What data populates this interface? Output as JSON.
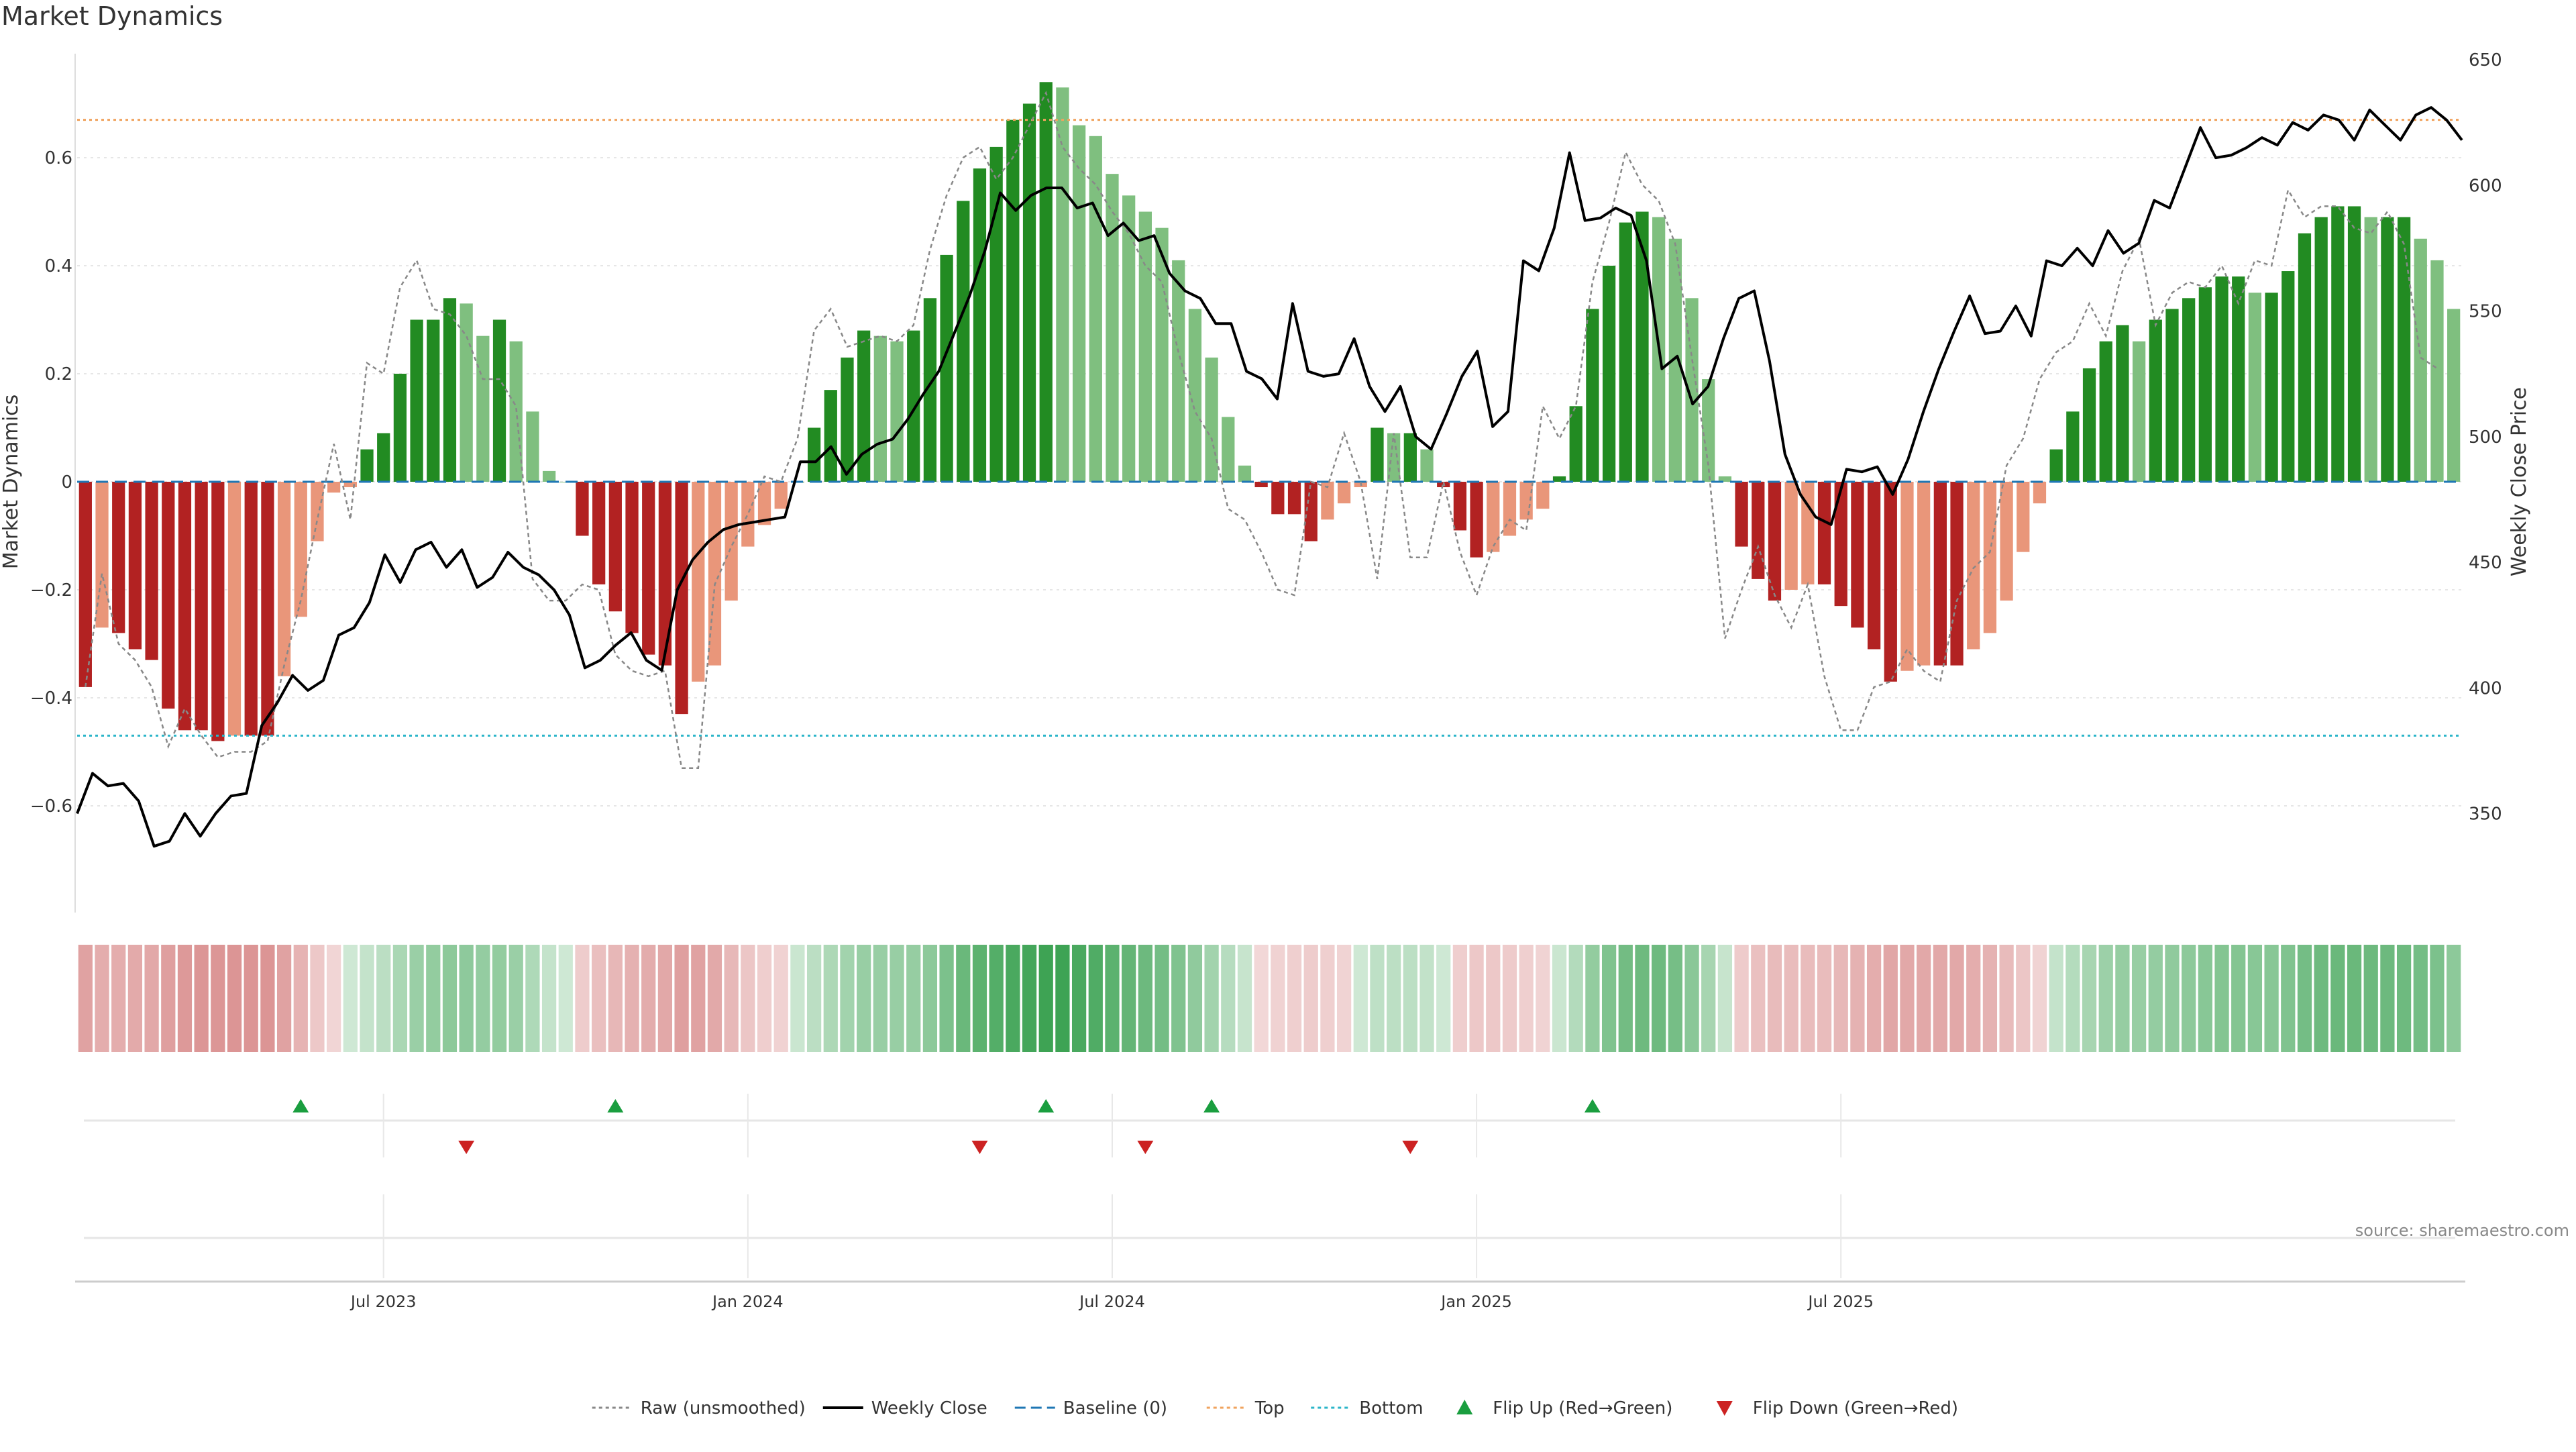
{
  "chart_data": {
    "type": "bar",
    "title": "Market Dynamics",
    "source": "source: sharemaestro.com",
    "ylabel_left": "Market Dynamics",
    "ylabel_right": "Weekly Close Price",
    "ylim_left": [
      -0.8,
      0.8
    ],
    "ylim_right": [
      310,
      660
    ],
    "left_ticks": [
      "0.6",
      "0.4",
      "0.2",
      "0",
      "−0.2",
      "−0.4",
      "−0.6"
    ],
    "left_tick_values": [
      0.6,
      0.4,
      0.2,
      0,
      -0.2,
      -0.4,
      -0.6
    ],
    "right_ticks": [
      "650",
      "600",
      "550",
      "500",
      "450",
      "400",
      "350"
    ],
    "right_tick_values": [
      650,
      600,
      550,
      500,
      450,
      400,
      350
    ],
    "x_ticks": [
      {
        "label": "Jul 2023",
        "week": 18
      },
      {
        "label": "Jan 2024",
        "week": 40
      },
      {
        "label": "Jul 2024",
        "week": 62
      },
      {
        "label": "Jan 2025",
        "week": 84
      },
      {
        "label": "Jul 2025",
        "week": 106
      }
    ],
    "reference_lines": {
      "top": 0.67,
      "bottom": -0.47,
      "baseline": 0
    },
    "bars": [
      -0.38,
      -0.27,
      -0.28,
      -0.31,
      -0.33,
      -0.42,
      -0.46,
      -0.46,
      -0.48,
      -0.47,
      -0.47,
      -0.47,
      -0.36,
      -0.25,
      -0.11,
      -0.02,
      -0.01,
      0.06,
      0.09,
      0.2,
      0.3,
      0.3,
      0.34,
      0.33,
      0.27,
      0.3,
      0.26,
      0.13,
      0.02,
      0,
      -0.1,
      -0.19,
      -0.24,
      -0.28,
      -0.32,
      -0.34,
      -0.43,
      -0.37,
      -0.34,
      -0.22,
      -0.12,
      -0.08,
      -0.05,
      0,
      0.1,
      0.17,
      0.23,
      0.28,
      0.27,
      0.26,
      0.28,
      0.34,
      0.42,
      0.52,
      0.58,
      0.62,
      0.67,
      0.7,
      0.74,
      0.73,
      0.66,
      0.64,
      0.57,
      0.53,
      0.5,
      0.47,
      0.41,
      0.32,
      0.23,
      0.12,
      0.03,
      -0.01,
      -0.06,
      -0.06,
      -0.11,
      -0.07,
      -0.04,
      -0.01,
      0.1,
      0.09,
      0.09,
      0.06,
      -0.01,
      -0.09,
      -0.14,
      -0.13,
      -0.1,
      -0.07,
      -0.05,
      0.01,
      0.14,
      0.32,
      0.4,
      0.48,
      0.5,
      0.49,
      0.45,
      0.34,
      0.19,
      0.01,
      -0.12,
      -0.18,
      -0.22,
      -0.2,
      -0.19,
      -0.19,
      -0.23,
      -0.27,
      -0.31,
      -0.37,
      -0.35,
      -0.34,
      -0.34,
      -0.34,
      -0.31,
      -0.28,
      -0.22,
      -0.13,
      -0.04,
      0.06,
      0.13,
      0.21,
      0.26,
      0.29,
      0.26,
      0.3,
      0.32,
      0.34,
      0.36,
      0.38,
      0.38,
      0.35,
      0.35,
      0.39,
      0.46,
      0.49,
      0.51,
      0.51,
      0.49,
      0.49,
      0.49,
      0.45,
      0.41,
      0.32
    ],
    "raw": [
      -0.38,
      -0.17,
      -0.3,
      -0.33,
      -0.38,
      -0.49,
      -0.42,
      -0.47,
      -0.51,
      -0.5,
      -0.5,
      -0.48,
      -0.34,
      -0.22,
      -0.07,
      0.07,
      -0.07,
      0.22,
      0.2,
      0.36,
      0.41,
      0.32,
      0.31,
      0.27,
      0.19,
      0.19,
      0.14,
      -0.18,
      -0.22,
      -0.22,
      -0.19,
      -0.2,
      -0.32,
      -0.35,
      -0.36,
      -0.35,
      -0.53,
      -0.53,
      -0.19,
      -0.12,
      -0.06,
      0.01,
      0.0,
      0.08,
      0.28,
      0.32,
      0.25,
      0.26,
      0.27,
      0.26,
      0.29,
      0.43,
      0.53,
      0.6,
      0.62,
      0.56,
      0.6,
      0.66,
      0.72,
      0.62,
      0.58,
      0.55,
      0.5,
      0.46,
      0.4,
      0.37,
      0.24,
      0.13,
      0.08,
      -0.05,
      -0.07,
      -0.13,
      -0.2,
      -0.21,
      0.0,
      -0.01,
      0.09,
      0.0,
      -0.18,
      0.09,
      -0.14,
      -0.14,
      0.0,
      -0.13,
      -0.21,
      -0.12,
      -0.07,
      -0.09,
      0.14,
      0.08,
      0.14,
      0.37,
      0.48,
      0.61,
      0.55,
      0.52,
      0.44,
      0.23,
      0.03,
      -0.29,
      -0.2,
      -0.12,
      -0.21,
      -0.27,
      -0.19,
      -0.36,
      -0.46,
      -0.46,
      -0.38,
      -0.37,
      -0.31,
      -0.35,
      -0.37,
      -0.22,
      -0.16,
      -0.13,
      0.03,
      0.08,
      0.19,
      0.24,
      0.26,
      0.33,
      0.27,
      0.39,
      0.45,
      0.29,
      0.35,
      0.37,
      0.36,
      0.4,
      0.33,
      0.41,
      0.4,
      0.54,
      0.49,
      0.51,
      0.51,
      0.47,
      0.46,
      0.5,
      0.44,
      0.23,
      0.21
    ],
    "close": [
      350,
      366,
      361,
      362,
      355,
      337,
      339,
      350,
      341,
      350,
      357,
      358,
      385,
      394,
      405,
      399,
      403,
      421,
      424,
      434,
      453,
      442,
      455,
      458,
      448,
      455,
      440,
      444,
      454,
      448,
      445,
      439,
      429,
      408,
      411,
      417,
      422,
      411,
      407,
      439,
      451,
      458,
      463,
      465,
      466,
      467,
      468,
      490,
      490,
      496,
      485,
      493,
      497,
      499,
      507,
      517,
      526,
      541,
      556,
      574,
      597,
      590,
      596,
      599,
      599,
      591,
      593,
      580,
      585,
      578,
      580,
      565,
      558,
      555,
      545,
      545,
      526,
      523,
      515,
      553,
      526,
      524,
      525,
      539,
      520,
      510,
      520,
      500,
      495,
      509,
      524,
      534,
      504,
      510,
      570,
      566,
      583,
      613,
      586,
      587,
      591,
      588,
      570,
      527,
      532,
      513,
      520,
      539,
      555,
      558,
      530,
      493,
      477,
      468,
      465,
      487,
      486,
      488,
      477,
      491,
      510,
      527,
      542,
      556,
      541,
      542,
      552,
      540,
      570,
      568,
      575,
      568,
      582,
      573,
      577,
      594,
      591,
      607,
      623,
      611,
      612,
      615,
      619,
      616,
      625,
      622,
      628,
      626,
      618,
      630,
      624,
      618,
      628,
      631,
      626,
      618
    ],
    "heat_values": [
      -0.38,
      -0.3,
      -0.3,
      -0.32,
      -0.34,
      -0.4,
      -0.44,
      -0.46,
      -0.46,
      -0.47,
      -0.47,
      -0.47,
      -0.38,
      -0.26,
      -0.12,
      -0.03,
      0,
      0.05,
      0.1,
      0.18,
      0.26,
      0.3,
      0.33,
      0.32,
      0.29,
      0.3,
      0.26,
      0.16,
      0.05,
      0,
      -0.09,
      -0.18,
      -0.24,
      -0.28,
      -0.31,
      -0.34,
      -0.4,
      -0.38,
      -0.33,
      -0.23,
      -0.13,
      -0.08,
      -0.05,
      0.02,
      0.1,
      0.17,
      0.22,
      0.27,
      0.27,
      0.27,
      0.28,
      0.33,
      0.41,
      0.5,
      0.57,
      0.61,
      0.66,
      0.69,
      0.72,
      0.72,
      0.66,
      0.63,
      0.57,
      0.53,
      0.49,
      0.45,
      0.39,
      0.31,
      0.22,
      0.12,
      0.04,
      -0.02,
      -0.05,
      -0.07,
      -0.09,
      -0.07,
      -0.04,
      0,
      0.08,
      0.09,
      0.09,
      0.06,
      0,
      -0.08,
      -0.12,
      -0.12,
      -0.1,
      -0.07,
      -0.04,
      0.02,
      0.14,
      0.3,
      0.39,
      0.46,
      0.48,
      0.48,
      0.44,
      0.34,
      0.2,
      0.04,
      -0.1,
      -0.17,
      -0.21,
      -0.2,
      -0.2,
      -0.2,
      -0.23,
      -0.27,
      -0.3,
      -0.35,
      -0.34,
      -0.34,
      -0.34,
      -0.34,
      -0.3,
      -0.27,
      -0.21,
      -0.13,
      -0.04,
      0.05,
      0.13,
      0.2,
      0.25,
      0.28,
      0.27,
      0.29,
      0.31,
      0.33,
      0.35,
      0.37,
      0.37,
      0.35,
      0.35,
      0.39,
      0.45,
      0.48,
      0.5,
      0.5,
      0.49,
      0.49,
      0.48,
      0.45,
      0.41,
      0.33
    ],
    "flip_up_weeks": [
      13,
      32,
      58,
      68,
      91
    ],
    "flip_down_weeks": [
      23,
      54,
      64,
      80
    ],
    "legend": [
      {
        "label": "Raw (unsmoothed)",
        "style": "dotted",
        "color": "#888888"
      },
      {
        "label": "Weekly Close",
        "style": "solid",
        "color": "#000000"
      },
      {
        "label": "Baseline (0)",
        "style": "dashed",
        "color": "#1f77b4"
      },
      {
        "label": "Top",
        "style": "dotted",
        "color": "#f0a35e"
      },
      {
        "label": "Bottom",
        "style": "dotted",
        "color": "#2bb5c9"
      },
      {
        "label": "Flip Up (Red→Green)",
        "style": "marker-up",
        "color": "#1a9e3f"
      },
      {
        "label": "Flip Down (Green→Red)",
        "style": "marker-down",
        "color": "#cc2222"
      }
    ],
    "colors": {
      "strong_green": "#228B22",
      "light_green": "#7FBF7F",
      "strong_red": "#B22222",
      "light_red": "#E9967A",
      "close_line": "#000000",
      "raw_line": "#888888",
      "top_line": "#f0a35e",
      "bottom_line": "#2bb5c9",
      "baseline": "#1f77b4"
    }
  }
}
